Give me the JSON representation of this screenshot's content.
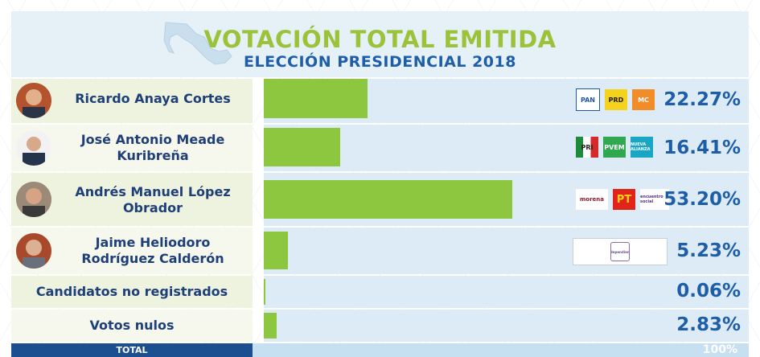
{
  "header": {
    "title": "VOTACIÓN TOTAL EMITIDA",
    "subtitle": "ELECCIÓN PRESIDENCIAL 2018"
  },
  "rows": [
    {
      "name_line1": "Ricardo Anaya Cortes",
      "name_line2": "",
      "percent_label": "22.27%",
      "value": 22.27,
      "parties": [
        "PAN",
        "PRD",
        "MC"
      ]
    },
    {
      "name_line1": "José Antonio Meade",
      "name_line2": "Kuribreña",
      "percent_label": "16.41%",
      "value": 16.41,
      "parties": [
        "PRI",
        "PVEM",
        "NUEVA ALIANZA"
      ]
    },
    {
      "name_line1": "Andrés Manuel López",
      "name_line2": "Obrador",
      "percent_label": "53.20%",
      "value": 53.2,
      "parties": [
        "morena",
        "PT",
        "encuentro social"
      ]
    },
    {
      "name_line1": "Jaime Heliodoro",
      "name_line2": "Rodríguez Calderón",
      "percent_label": "5.23%",
      "value": 5.23,
      "parties": [
        "independiente"
      ]
    },
    {
      "name_line1": "Candidatos no registrados",
      "name_line2": "",
      "percent_label": "0.06%",
      "value": 0.06,
      "parties": []
    },
    {
      "name_line1": "Votos nulos",
      "name_line2": "",
      "percent_label": "2.83%",
      "value": 2.83,
      "parties": []
    }
  ],
  "total": {
    "label": "TOTAL",
    "value_label": "100%"
  },
  "colors": {
    "bar": "#8dc63f",
    "title_green": "#9bc33a",
    "subtitle_blue": "#1e5ea8",
    "name_blue": "#1f3f78",
    "total_navy": "#1b4f8f"
  },
  "chart_data": {
    "type": "bar",
    "orientation": "horizontal",
    "title": "VOTACIÓN TOTAL EMITIDA",
    "subtitle": "ELECCIÓN PRESIDENCIAL 2018",
    "categories": [
      "Ricardo Anaya Cortes",
      "José Antonio Meade Kuribreña",
      "Andrés Manuel López Obrador",
      "Jaime Heliodoro Rodríguez Calderón",
      "Candidatos no registrados",
      "Votos nulos"
    ],
    "values": [
      22.27,
      16.41,
      53.2,
      5.23,
      0.06,
      2.83
    ],
    "total": 100,
    "xlim": [
      0,
      62
    ]
  }
}
